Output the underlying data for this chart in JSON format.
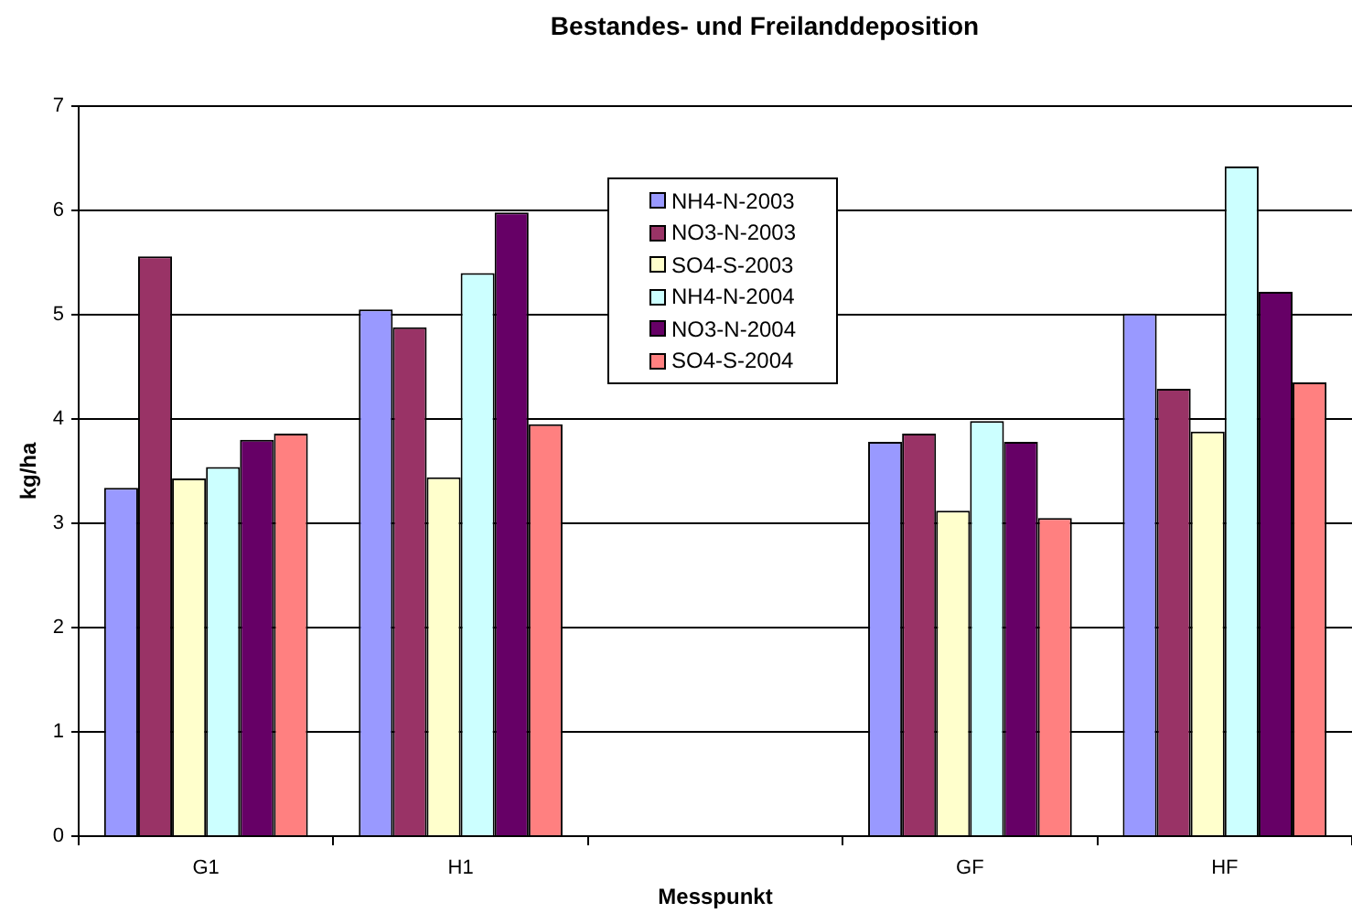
{
  "chart_data": {
    "type": "bar",
    "title": "Bestandes- und Freilanddeposition",
    "xlabel": "Messpunkt",
    "ylabel": "kg/ha",
    "categories": [
      "G1",
      "H1",
      null,
      "GF",
      "HF"
    ],
    "series": [
      {
        "name": "NH4-N-2003",
        "color": "#9999ff",
        "values": [
          3.34,
          5.05,
          null,
          3.78,
          5.01
        ]
      },
      {
        "name": "NO3-N-2003",
        "color": "#993366",
        "values": [
          5.56,
          4.88,
          null,
          3.86,
          4.29
        ]
      },
      {
        "name": "SO4-S-2003",
        "color": "#ffffcc",
        "values": [
          3.43,
          3.44,
          null,
          3.12,
          3.88
        ]
      },
      {
        "name": "NH4-N-2004",
        "color": "#ccffff",
        "values": [
          3.54,
          5.4,
          null,
          3.98,
          6.42
        ]
      },
      {
        "name": "NO3-N-2004",
        "color": "#660066",
        "values": [
          3.8,
          5.98,
          null,
          3.78,
          5.22
        ]
      },
      {
        "name": "SO4-S-2004",
        "color": "#ff8080",
        "values": [
          3.86,
          3.95,
          null,
          3.05,
          4.35
        ]
      }
    ],
    "ylim": [
      0,
      7
    ],
    "yticks": [
      0,
      1,
      2,
      3,
      4,
      5,
      6,
      7
    ],
    "grid": "y",
    "legend": "top"
  }
}
